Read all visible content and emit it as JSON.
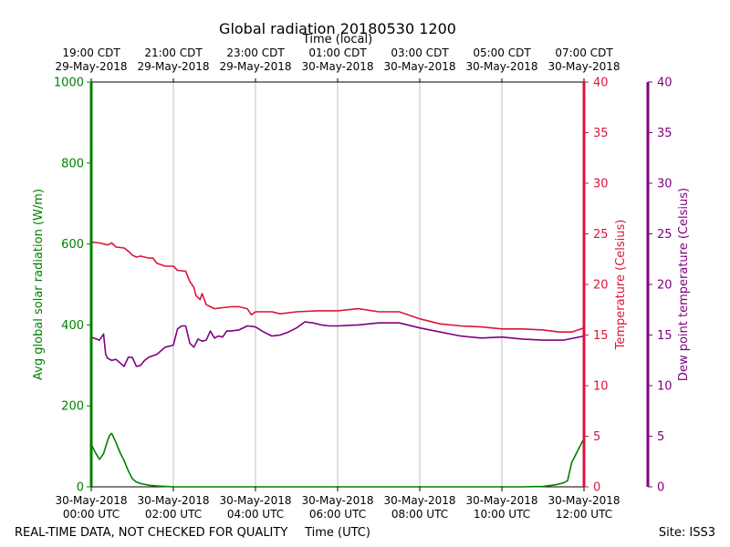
{
  "chart_data": {
    "type": "line",
    "title": "Global radiation 20180530 1200",
    "top_axis_label": "Time (local)",
    "xlabel": "Time (UTC)",
    "footer_left": "REAL-TIME DATA, NOT CHECKED FOR QUALITY",
    "footer_right": "Site: ISS3",
    "x_range_hours": [
      0,
      12
    ],
    "top_ticks": [
      {
        "hour": 0,
        "line1": "19:00 CDT",
        "line2": "29-May-2018"
      },
      {
        "hour": 2,
        "line1": "21:00 CDT",
        "line2": "29-May-2018"
      },
      {
        "hour": 4,
        "line1": "23:00 CDT",
        "line2": "29-May-2018"
      },
      {
        "hour": 6,
        "line1": "01:00 CDT",
        "line2": "30-May-2018"
      },
      {
        "hour": 8,
        "line1": "03:00 CDT",
        "line2": "30-May-2018"
      },
      {
        "hour": 10,
        "line1": "05:00 CDT",
        "line2": "30-May-2018"
      },
      {
        "hour": 12,
        "line1": "07:00 CDT",
        "line2": "30-May-2018"
      }
    ],
    "bottom_ticks": [
      {
        "hour": 0,
        "line1": "30-May-2018",
        "line2": "00:00 UTC"
      },
      {
        "hour": 2,
        "line1": "30-May-2018",
        "line2": "02:00 UTC"
      },
      {
        "hour": 4,
        "line1": "30-May-2018",
        "line2": "04:00 UTC"
      },
      {
        "hour": 6,
        "line1": "30-May-2018",
        "line2": "06:00 UTC"
      },
      {
        "hour": 8,
        "line1": "30-May-2018",
        "line2": "08:00 UTC"
      },
      {
        "hour": 10,
        "line1": "30-May-2018",
        "line2": "10:00 UTC"
      },
      {
        "hour": 12,
        "line1": "30-May-2018",
        "line2": "12:00 UTC"
      }
    ],
    "grid_vertical": true,
    "axes": {
      "left": {
        "label": "Avg global solar radiation (W/m)",
        "ylim": [
          0,
          1000
        ],
        "ticks": [
          0,
          200,
          400,
          600,
          800,
          1000
        ],
        "color": "#008000"
      },
      "right1": {
        "label": "Temperature (Celsius)",
        "ylim": [
          0,
          40
        ],
        "ticks": [
          0,
          5,
          10,
          15,
          20,
          25,
          30,
          35,
          40
        ],
        "color": "#dc143c"
      },
      "right2": {
        "label": "Dew point temperature (Celsius)",
        "ylim": [
          0,
          40
        ],
        "ticks": [
          0,
          5,
          10,
          15,
          20,
          25,
          30,
          35,
          40
        ],
        "color": "#800080"
      }
    },
    "series": [
      {
        "name": "Avg global solar radiation",
        "axis": "left",
        "color": "#008000",
        "x": [
          0,
          0.1,
          0.2,
          0.3,
          0.4,
          0.45,
          0.5,
          0.6,
          0.7,
          0.8,
          0.9,
          1.0,
          1.1,
          1.2,
          1.4,
          1.6,
          1.8,
          2.0,
          3.0,
          6.0,
          9.0,
          10.5,
          11.0,
          11.3,
          11.5,
          11.6,
          11.7,
          11.8,
          11.9,
          12.0
        ],
        "values": [
          105,
          85,
          68,
          82,
          115,
          128,
          132,
          110,
          85,
          65,
          40,
          20,
          12,
          8,
          4,
          2,
          1,
          0,
          0,
          0,
          0,
          0,
          1,
          5,
          10,
          15,
          60,
          80,
          100,
          120
        ]
      },
      {
        "name": "Temperature",
        "axis": "right1",
        "color": "#dc143c",
        "x": [
          0,
          0.2,
          0.4,
          0.5,
          0.6,
          0.8,
          0.9,
          1.0,
          1.1,
          1.2,
          1.4,
          1.5,
          1.6,
          1.8,
          2.0,
          2.1,
          2.3,
          2.4,
          2.5,
          2.55,
          2.65,
          2.7,
          2.8,
          2.9,
          3.0,
          3.2,
          3.4,
          3.6,
          3.8,
          3.9,
          4.0,
          4.2,
          4.4,
          4.6,
          5.0,
          5.5,
          6.0,
          6.5,
          7.0,
          7.5,
          8.0,
          8.5,
          9.0,
          9.5,
          10.0,
          10.5,
          11.0,
          11.4,
          11.7,
          12.0
        ],
        "values": [
          24.2,
          24.1,
          23.9,
          24.1,
          23.7,
          23.6,
          23.3,
          22.9,
          22.7,
          22.8,
          22.6,
          22.6,
          22.1,
          21.8,
          21.8,
          21.4,
          21.3,
          20.3,
          19.7,
          18.9,
          18.5,
          19.1,
          18.0,
          17.8,
          17.6,
          17.7,
          17.8,
          17.8,
          17.6,
          17.0,
          17.3,
          17.3,
          17.3,
          17.1,
          17.3,
          17.4,
          17.4,
          17.6,
          17.3,
          17.3,
          16.6,
          16.1,
          15.9,
          15.8,
          15.6,
          15.6,
          15.5,
          15.3,
          15.3,
          15.7
        ]
      },
      {
        "name": "Dew point temperature",
        "axis": "right2",
        "color": "#800080",
        "x": [
          0,
          0.2,
          0.3,
          0.35,
          0.4,
          0.5,
          0.6,
          0.8,
          0.9,
          1.0,
          1.1,
          1.2,
          1.3,
          1.4,
          1.6,
          1.8,
          2.0,
          2.1,
          2.2,
          2.3,
          2.4,
          2.5,
          2.6,
          2.7,
          2.8,
          2.9,
          3.0,
          3.1,
          3.2,
          3.3,
          3.4,
          3.6,
          3.8,
          4.0,
          4.2,
          4.4,
          4.6,
          4.8,
          5.0,
          5.2,
          5.4,
          5.6,
          5.8,
          6.0,
          6.5,
          7.0,
          7.5,
          8.0,
          8.5,
          9.0,
          9.5,
          10.0,
          10.5,
          11.0,
          11.5,
          12.0
        ],
        "values": [
          14.8,
          14.5,
          15.1,
          13.1,
          12.7,
          12.5,
          12.6,
          11.9,
          12.8,
          12.8,
          11.9,
          12.0,
          12.5,
          12.8,
          13.1,
          13.8,
          14.0,
          15.6,
          15.9,
          15.9,
          14.2,
          13.8,
          14.6,
          14.4,
          14.5,
          15.4,
          14.7,
          14.9,
          14.8,
          15.4,
          15.4,
          15.5,
          15.9,
          15.8,
          15.3,
          14.9,
          15.0,
          15.3,
          15.7,
          16.3,
          16.2,
          16.0,
          15.9,
          15.9,
          16.0,
          16.2,
          16.2,
          15.7,
          15.3,
          14.9,
          14.7,
          14.8,
          14.6,
          14.5,
          14.5,
          14.9
        ]
      }
    ]
  }
}
